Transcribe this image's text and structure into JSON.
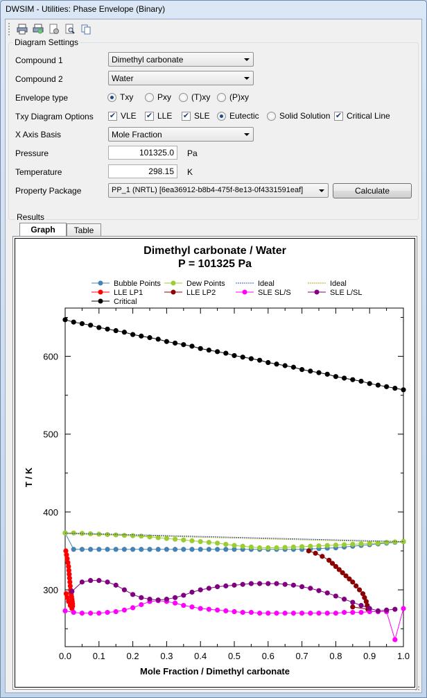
{
  "window": {
    "title": "DWSIM - Utilities: Phase Envelope (Binary)"
  },
  "toolbar": {
    "icons": [
      "printer-icon",
      "print-preview-icon",
      "page-setup-icon",
      "zoom-icon",
      "copy-icon"
    ]
  },
  "settings": {
    "group_title": "Diagram Settings",
    "compound1": {
      "label": "Compound 1",
      "value": "Dimethyl carbonate"
    },
    "compound2": {
      "label": "Compound 2",
      "value": "Water"
    },
    "envelope": {
      "label": "Envelope type",
      "options": [
        "Txy",
        "Pxy",
        "(T)xy",
        "(P)xy"
      ],
      "selected": "Txy"
    },
    "txy_options": {
      "label": "Txy Diagram Options",
      "vle": "VLE",
      "lle": "LLE",
      "sle": "SLE",
      "eutectic": "Eutectic",
      "solid_solution": "Solid Solution",
      "critical_line": "Critical Line"
    },
    "xaxis": {
      "label": "X Axis Basis",
      "value": "Mole Fraction"
    },
    "pressure": {
      "label": "Pressure",
      "value": "101325.0",
      "unit": "Pa"
    },
    "temperature": {
      "label": "Temperature",
      "value": "298.15",
      "unit": "K"
    },
    "package": {
      "label": "Property Package",
      "value": "PP_1 (NRTL) [6ea36912-b8b4-475f-8e13-0f4331591eaf]"
    },
    "calculate_label": "Calculate"
  },
  "results": {
    "group_title": "Results",
    "tabs": [
      "Graph",
      "Table"
    ],
    "active_tab": "Graph"
  },
  "chart_data": {
    "type": "line",
    "title": "Dimethyl carbonate / Water",
    "subtitle": "P = 101325 Pa",
    "xlabel": "Mole Fraction / Dimethyl carbonate",
    "ylabel": "T / K",
    "xlim": [
      0,
      1
    ],
    "ylim": [
      227,
      662
    ],
    "xticks": [
      0,
      0.1,
      0.2,
      0.3,
      0.4,
      0.5,
      0.6,
      0.7,
      0.8,
      0.9,
      1
    ],
    "xtick_labels": [
      "0.0",
      "0.1",
      "0.2",
      "0.3",
      "0.4",
      "0.5",
      "0.6",
      "0.7",
      "0.8",
      "0.9",
      "1.0"
    ],
    "yticks": [
      300,
      400,
      500,
      600
    ],
    "grid": false,
    "legend_position": "top",
    "series": [
      {
        "name": "Bubble Points",
        "color": "#4682b4",
        "marker": true,
        "x": [
          0,
          0.025,
          0.05,
          0.075,
          0.1,
          0.125,
          0.15,
          0.175,
          0.2,
          0.225,
          0.25,
          0.275,
          0.3,
          0.325,
          0.35,
          0.375,
          0.4,
          0.425,
          0.45,
          0.475,
          0.5,
          0.525,
          0.55,
          0.575,
          0.6,
          0.625,
          0.65,
          0.675,
          0.7,
          0.725,
          0.75,
          0.775,
          0.8,
          0.825,
          0.85,
          0.875,
          0.9,
          0.925,
          0.95,
          0.975,
          1.0
        ],
        "y": [
          373,
          352,
          352,
          352,
          352,
          352,
          352,
          352,
          352,
          352,
          352,
          352,
          352,
          352,
          352,
          352,
          352,
          352,
          352,
          352,
          352,
          352,
          352,
          352,
          352,
          352,
          352,
          352,
          352,
          352.5,
          353,
          353.5,
          354,
          355,
          356,
          357,
          358,
          359,
          360,
          361,
          362
        ]
      },
      {
        "name": "Dew Points",
        "color": "#9acd32",
        "marker": true,
        "x": [
          0,
          0.025,
          0.05,
          0.075,
          0.1,
          0.125,
          0.15,
          0.175,
          0.2,
          0.225,
          0.25,
          0.275,
          0.3,
          0.325,
          0.35,
          0.375,
          0.4,
          0.425,
          0.45,
          0.475,
          0.5,
          0.525,
          0.55,
          0.575,
          0.6,
          0.625,
          0.65,
          0.675,
          0.7,
          0.725,
          0.75,
          0.775,
          0.8,
          0.825,
          0.85,
          0.875,
          0.9,
          0.925,
          0.95,
          0.975,
          1.0
        ],
        "y": [
          373,
          373,
          372.5,
          372,
          371.5,
          371,
          370.5,
          370,
          369.5,
          369,
          368,
          367,
          366,
          365,
          364,
          363,
          362,
          361,
          360,
          358.5,
          357,
          356,
          355,
          354,
          354,
          354,
          354.5,
          355,
          355.5,
          356,
          356.5,
          357,
          357.5,
          358,
          358.5,
          359,
          359.5,
          360,
          361,
          361.5,
          362
        ]
      },
      {
        "name": "Ideal",
        "color": "#3355cc",
        "dashed": true,
        "x": [
          0,
          1
        ],
        "y": [
          373,
          362
        ]
      },
      {
        "name": "Ideal",
        "color": "#aaaa00",
        "dashed": true,
        "x": [
          0,
          1
        ],
        "y": [
          372,
          361
        ]
      },
      {
        "name": "LLE LP1",
        "color": "#ff0000",
        "marker": true,
        "x": [
          0.002,
          0.004,
          0.006,
          0.008,
          0.01,
          0.011,
          0.012,
          0.013,
          0.014,
          0.015,
          0.016,
          0.017,
          0.018,
          0.019,
          0.02,
          0.021,
          0.022,
          0.022,
          0.02,
          0.015,
          0.01,
          0.006,
          0.003
        ],
        "y": [
          350,
          345,
          340,
          335,
          330,
          325,
          320,
          315,
          310,
          305,
          300,
          297,
          294,
          291,
          288,
          285,
          282,
          279,
          276,
          280,
          285,
          290,
          295
        ]
      },
      {
        "name": "LLE LP2",
        "color": "#8b0000",
        "marker": true,
        "x": [
          0.72,
          0.74,
          0.76,
          0.78,
          0.79,
          0.8,
          0.81,
          0.82,
          0.83,
          0.84,
          0.85,
          0.86,
          0.87,
          0.88,
          0.885,
          0.89,
          0.893,
          0.895,
          0.85
        ],
        "y": [
          350,
          347,
          343,
          338,
          334,
          330,
          326,
          322,
          318,
          314,
          310,
          305,
          300,
          295,
          290,
          285,
          280,
          275,
          278
        ]
      },
      {
        "name": "SLE SL/S",
        "color": "#ff00ff",
        "marker": true,
        "x": [
          0,
          0.025,
          0.05,
          0.075,
          0.1,
          0.125,
          0.15,
          0.175,
          0.2,
          0.225,
          0.25,
          0.275,
          0.3,
          0.325,
          0.35,
          0.375,
          0.4,
          0.425,
          0.45,
          0.475,
          0.5,
          0.525,
          0.55,
          0.575,
          0.6,
          0.625,
          0.65,
          0.675,
          0.7,
          0.725,
          0.75,
          0.775,
          0.8,
          0.825,
          0.85,
          0.875,
          0.9,
          0.925,
          0.95,
          0.975,
          1.0
        ],
        "y": [
          273,
          271,
          270,
          270,
          270,
          271,
          272,
          274,
          277,
          281,
          285,
          286,
          285,
          283,
          280,
          278,
          276,
          275,
          274,
          273,
          272,
          271,
          271,
          270,
          270,
          270,
          270,
          270,
          270,
          270,
          270,
          270,
          270,
          271,
          271,
          271,
          272,
          272,
          272,
          236,
          276
        ]
      },
      {
        "name": "SLE L/SL",
        "color": "#800080",
        "marker": true,
        "x": [
          0.02,
          0.05,
          0.075,
          0.1,
          0.125,
          0.15,
          0.175,
          0.2,
          0.225,
          0.25,
          0.275,
          0.3,
          0.325,
          0.35,
          0.375,
          0.4,
          0.425,
          0.45,
          0.475,
          0.5,
          0.525,
          0.55,
          0.575,
          0.6,
          0.625,
          0.65,
          0.675,
          0.7,
          0.725,
          0.75,
          0.775,
          0.8,
          0.825,
          0.85,
          0.875,
          0.9,
          0.925,
          0.95,
          0.975
        ],
        "y": [
          298,
          310,
          312,
          312,
          310,
          306,
          300,
          294,
          290,
          288,
          287,
          288,
          290,
          293,
          297,
          300,
          302,
          304,
          305,
          306,
          307,
          308,
          308,
          308,
          308,
          307,
          306,
          304,
          302,
          299,
          296,
          292,
          288,
          284,
          280,
          276,
          273,
          274,
          275
        ]
      },
      {
        "name": "Critical",
        "color": "#000000",
        "marker": true,
        "x": [
          0,
          0.025,
          0.05,
          0.075,
          0.1,
          0.125,
          0.15,
          0.175,
          0.2,
          0.225,
          0.25,
          0.275,
          0.3,
          0.325,
          0.35,
          0.375,
          0.4,
          0.425,
          0.45,
          0.475,
          0.5,
          0.525,
          0.55,
          0.575,
          0.6,
          0.625,
          0.65,
          0.675,
          0.7,
          0.725,
          0.75,
          0.775,
          0.8,
          0.825,
          0.85,
          0.875,
          0.9,
          0.925,
          0.95,
          0.975,
          1.0
        ],
        "y": [
          647,
          644,
          642,
          640,
          637,
          635,
          633,
          631,
          628,
          626,
          624,
          622,
          619,
          617,
          615,
          613,
          610,
          608,
          606,
          604,
          601,
          599,
          597,
          595,
          592,
          590,
          588,
          586,
          583,
          581,
          579,
          577,
          574,
          572,
          570,
          568,
          565,
          563,
          561,
          559,
          557
        ]
      }
    ]
  }
}
